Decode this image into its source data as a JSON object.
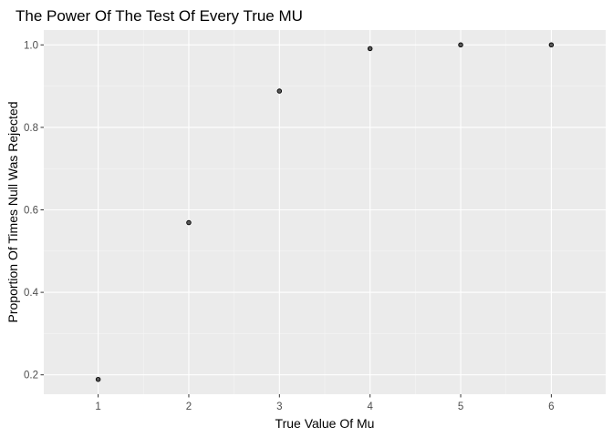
{
  "chart_data": {
    "type": "scatter",
    "title": "The Power Of The Test Of Every True MU",
    "xlabel": "True Value Of Mu",
    "ylabel": "Proportion Of Times Null Was Rejected",
    "x": [
      1,
      2,
      3,
      4,
      5,
      6
    ],
    "y": [
      0.189,
      0.569,
      0.888,
      0.991,
      1.0,
      1.0
    ],
    "x_ticks": [
      1,
      2,
      3,
      4,
      5,
      6
    ],
    "x_tick_labels": [
      "1",
      "2",
      "3",
      "4",
      "5",
      "6"
    ],
    "y_ticks": [
      0.2,
      0.4,
      0.6,
      0.8,
      1.0
    ],
    "y_tick_labels": [
      "0.2",
      "0.4",
      "0.6",
      "0.8",
      "1.0"
    ],
    "xlim": [
      0.4,
      6.6
    ],
    "ylim": [
      0.153,
      1.036
    ],
    "grid": true,
    "legend": "none",
    "colors": {
      "panel_background": "#ebebeb",
      "grid_major": "#ffffff",
      "grid_minor": "#f5f5f5",
      "point_fill": "#595959",
      "point_stroke": "#000000",
      "tick_label": "#4d4d4d",
      "tick_mark": "#333333"
    }
  }
}
